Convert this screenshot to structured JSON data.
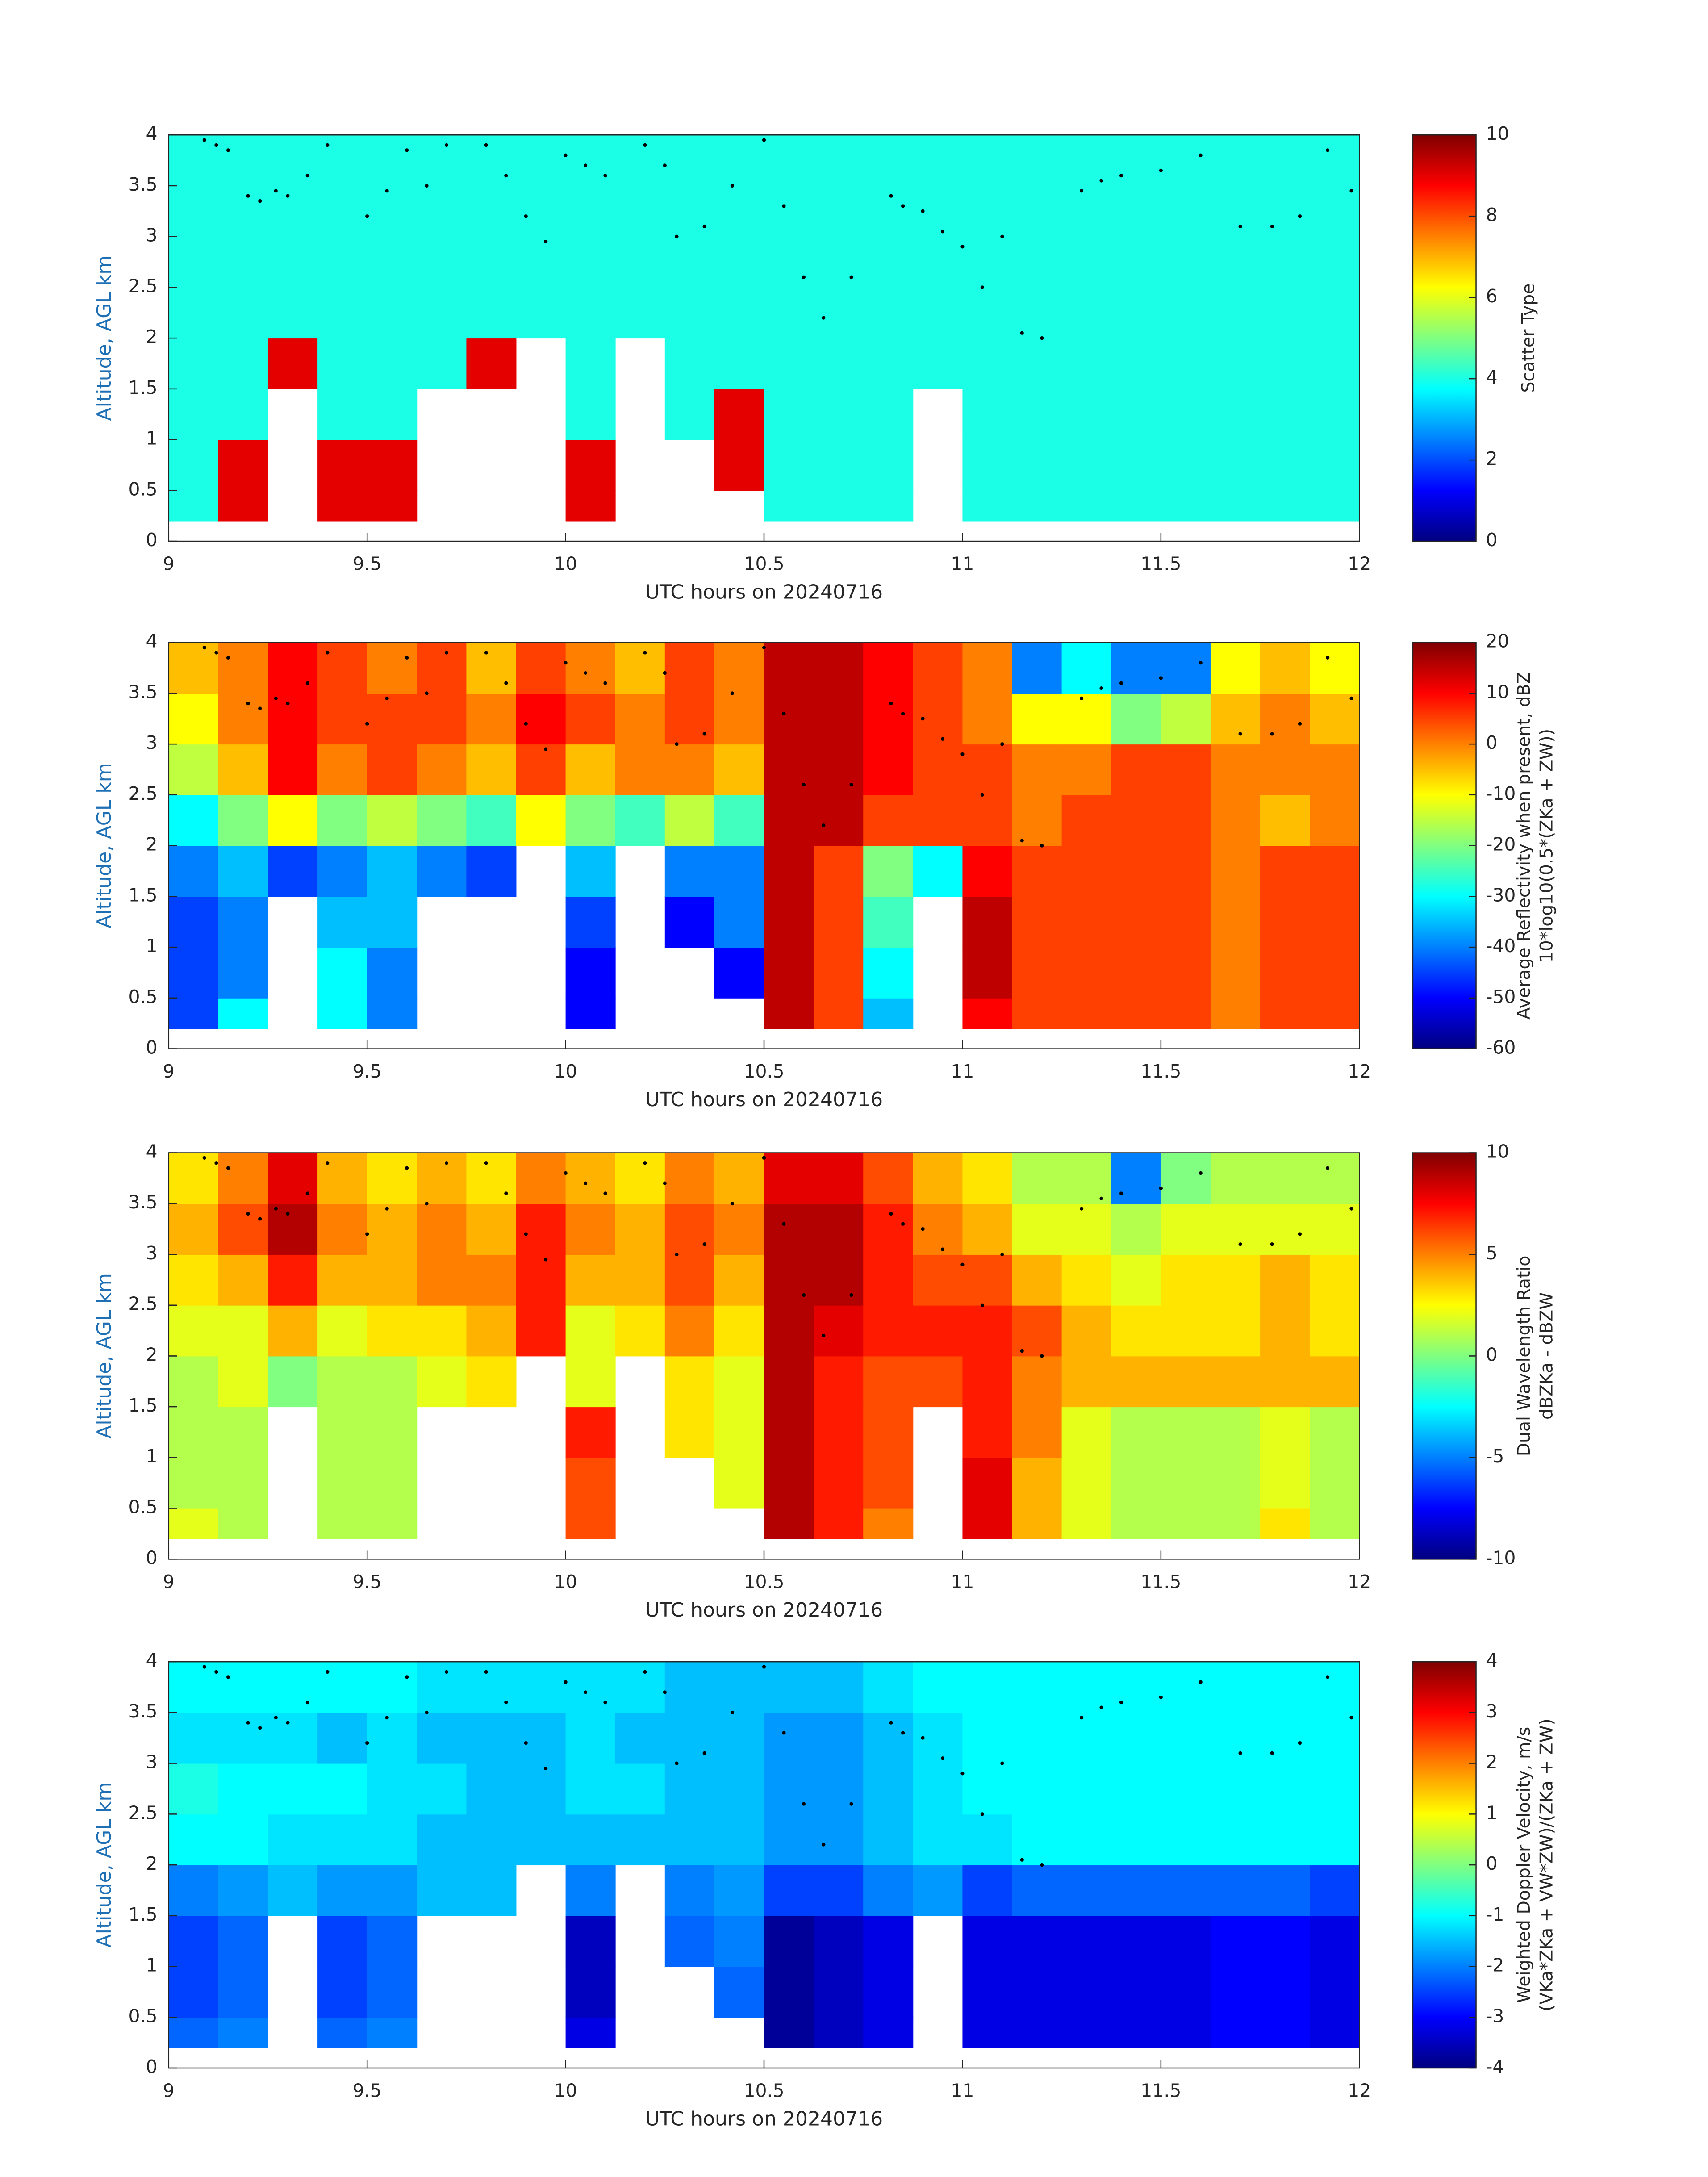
{
  "chart_data": [
    {
      "type": "heatmap",
      "colormap": "jet",
      "xlabel": "UTC hours on 20240716",
      "ylabel": "Altitude, AGL km",
      "xlim": [
        9,
        12
      ],
      "ylim": [
        0,
        4
      ],
      "xticks": [
        9,
        9.5,
        10,
        10.5,
        11,
        11.5,
        12
      ],
      "yticks": [
        0,
        0.5,
        1,
        1.5,
        2,
        2.5,
        3,
        3.5,
        4
      ],
      "clim": [
        0,
        10
      ],
      "cticks": [
        0,
        2,
        4,
        6,
        8,
        10
      ],
      "colorbar_label": [
        "Scatter Type"
      ],
      "x_edges": [
        9,
        9.125,
        9.25,
        9.375,
        9.5,
        9.625,
        9.75,
        9.875,
        10,
        10.125,
        10.25,
        10.375,
        10.5,
        10.625,
        10.75,
        10.875,
        11,
        11.125,
        11.25,
        11.375,
        11.5,
        11.625,
        11.75,
        11.875,
        12
      ],
      "y_edges": [
        0.2,
        0.5,
        1,
        1.5,
        2,
        2.5,
        3,
        3.5,
        4
      ],
      "z": [
        [
          4,
          9,
          null,
          9,
          9,
          null,
          null,
          null,
          9,
          null,
          null,
          null,
          4,
          4,
          4,
          null,
          4,
          4,
          4,
          4,
          4,
          4,
          4,
          4
        ],
        [
          4,
          9,
          null,
          9,
          9,
          null,
          null,
          null,
          9,
          null,
          null,
          9,
          4,
          4,
          4,
          null,
          4,
          4,
          4,
          4,
          4,
          4,
          4,
          4
        ],
        [
          4,
          4,
          null,
          4,
          4,
          null,
          null,
          null,
          4,
          null,
          4,
          9,
          4,
          4,
          4,
          null,
          4,
          4,
          4,
          4,
          4,
          4,
          4,
          4
        ],
        [
          4,
          4,
          9,
          4,
          4,
          4,
          9,
          null,
          4,
          null,
          4,
          4,
          4,
          4,
          4,
          4,
          4,
          4,
          4,
          4,
          4,
          4,
          4,
          4
        ],
        [
          4,
          4,
          4,
          4,
          4,
          4,
          4,
          4,
          4,
          4,
          4,
          4,
          4,
          4,
          4,
          4,
          4,
          4,
          4,
          4,
          4,
          4,
          4,
          4
        ],
        [
          4,
          4,
          4,
          4,
          4,
          4,
          4,
          4,
          4,
          4,
          4,
          4,
          4,
          4,
          4,
          4,
          4,
          4,
          4,
          4,
          4,
          4,
          4,
          4
        ],
        [
          4,
          4,
          4,
          4,
          4,
          4,
          4,
          4,
          4,
          4,
          4,
          4,
          4,
          4,
          4,
          4,
          4,
          4,
          4,
          4,
          4,
          4,
          4,
          4
        ],
        [
          4,
          4,
          4,
          4,
          4,
          4,
          4,
          4,
          4,
          4,
          4,
          4,
          4,
          4,
          4,
          4,
          4,
          4,
          4,
          4,
          4,
          4,
          4,
          4
        ]
      ]
    },
    {
      "type": "heatmap",
      "colormap": "jet",
      "xlabel": "UTC hours on 20240716",
      "ylabel": "Altitude, AGL km",
      "xlim": [
        9,
        12
      ],
      "ylim": [
        0,
        4
      ],
      "xticks": [
        9,
        9.5,
        10,
        10.5,
        11,
        11.5,
        12
      ],
      "yticks": [
        0,
        0.5,
        1,
        1.5,
        2,
        2.5,
        3,
        3.5,
        4
      ],
      "clim": [
        -60,
        20
      ],
      "cticks": [
        -60,
        -50,
        -40,
        -30,
        -20,
        -10,
        0,
        10,
        20
      ],
      "colorbar_label": [
        "Average Reflectivity when present, dBZ",
        "10*log10(0.5*(ZKa + ZW))"
      ],
      "x_edges": [
        9,
        9.125,
        9.25,
        9.375,
        9.5,
        9.625,
        9.75,
        9.875,
        10,
        10.125,
        10.25,
        10.375,
        10.5,
        10.625,
        10.75,
        10.875,
        11,
        11.125,
        11.25,
        11.375,
        11.5,
        11.625,
        11.75,
        11.875,
        12
      ],
      "y_edges": [
        0.2,
        0.5,
        1,
        1.5,
        2,
        2.5,
        3,
        3.5,
        4
      ],
      "z": [
        [
          -45,
          -30,
          null,
          -30,
          -40,
          null,
          null,
          null,
          -50,
          null,
          null,
          null,
          15,
          5,
          -35,
          null,
          10,
          5,
          5,
          5,
          5,
          0,
          5,
          5
        ],
        [
          -45,
          -40,
          null,
          -30,
          -40,
          null,
          null,
          null,
          -50,
          null,
          null,
          -50,
          15,
          5,
          -30,
          null,
          15,
          5,
          5,
          5,
          5,
          0,
          5,
          5
        ],
        [
          -45,
          -40,
          null,
          -35,
          -35,
          null,
          null,
          null,
          -45,
          null,
          -50,
          -40,
          15,
          5,
          -25,
          null,
          15,
          5,
          5,
          5,
          5,
          0,
          5,
          5
        ],
        [
          -40,
          -35,
          -45,
          -40,
          -35,
          -40,
          -45,
          null,
          -35,
          null,
          -40,
          -40,
          15,
          5,
          -20,
          -30,
          10,
          5,
          5,
          5,
          5,
          0,
          5,
          5
        ],
        [
          -30,
          -20,
          -10,
          -20,
          -15,
          -20,
          -25,
          -10,
          -20,
          -25,
          -15,
          -25,
          15,
          15,
          5,
          5,
          5,
          0,
          5,
          5,
          5,
          0,
          -5,
          0
        ],
        [
          -15,
          -5,
          10,
          0,
          5,
          0,
          -5,
          5,
          -5,
          0,
          0,
          -5,
          15,
          15,
          10,
          5,
          5,
          0,
          0,
          5,
          5,
          0,
          0,
          0
        ],
        [
          -10,
          0,
          10,
          5,
          5,
          5,
          0,
          10,
          5,
          0,
          5,
          0,
          15,
          15,
          10,
          5,
          0,
          -10,
          -10,
          -20,
          -15,
          -5,
          0,
          -5
        ],
        [
          -5,
          0,
          10,
          5,
          0,
          5,
          -5,
          5,
          0,
          -5,
          5,
          0,
          15,
          15,
          10,
          5,
          0,
          -40,
          -30,
          -40,
          -40,
          -10,
          -5,
          -10
        ]
      ]
    },
    {
      "type": "heatmap",
      "colormap": "jet",
      "xlabel": "UTC hours on 20240716",
      "ylabel": "Altitude, AGL km",
      "xlim": [
        9,
        12
      ],
      "ylim": [
        0,
        4
      ],
      "xticks": [
        9,
        9.5,
        10,
        10.5,
        11,
        11.5,
        12
      ],
      "yticks": [
        0,
        0.5,
        1,
        1.5,
        2,
        2.5,
        3,
        3.5,
        4
      ],
      "clim": [
        -10,
        10
      ],
      "cticks": [
        -10,
        -5,
        0,
        5,
        10
      ],
      "colorbar_label": [
        "Dual Wavelength Ratio",
        "dBZKa - dBZW"
      ],
      "x_edges": [
        9,
        9.125,
        9.25,
        9.375,
        9.5,
        9.625,
        9.75,
        9.875,
        10,
        10.125,
        10.25,
        10.375,
        10.5,
        10.625,
        10.75,
        10.875,
        11,
        11.125,
        11.25,
        11.375,
        11.5,
        11.625,
        11.75,
        11.875,
        12
      ],
      "y_edges": [
        0.2,
        0.5,
        1,
        1.5,
        2,
        2.5,
        3,
        3.5,
        4
      ],
      "z": [
        [
          2,
          1,
          null,
          1,
          1,
          null,
          null,
          null,
          6,
          null,
          null,
          null,
          9,
          7,
          5,
          null,
          8,
          4,
          2,
          1,
          1,
          1,
          3,
          1
        ],
        [
          1,
          1,
          null,
          1,
          1,
          null,
          null,
          null,
          6,
          null,
          null,
          2,
          9,
          7,
          6,
          null,
          8,
          4,
          2,
          1,
          1,
          1,
          2,
          1
        ],
        [
          1,
          1,
          null,
          1,
          1,
          null,
          null,
          null,
          7,
          null,
          3,
          2,
          9,
          7,
          6,
          null,
          7,
          5,
          2,
          1,
          1,
          1,
          2,
          1
        ],
        [
          1,
          2,
          0,
          1,
          1,
          2,
          3,
          null,
          2,
          null,
          3,
          2,
          9,
          7,
          6,
          6,
          7,
          5,
          4,
          4,
          4,
          4,
          4,
          4
        ],
        [
          2,
          2,
          4,
          2,
          3,
          3,
          4,
          7,
          2,
          3,
          5,
          3,
          9,
          8,
          7,
          7,
          7,
          6,
          4,
          3,
          3,
          3,
          4,
          3
        ],
        [
          3,
          4,
          7,
          4,
          4,
          5,
          5,
          7,
          4,
          4,
          6,
          4,
          9,
          9,
          7,
          6,
          6,
          4,
          3,
          2,
          3,
          3,
          4,
          3
        ],
        [
          4,
          6,
          9,
          5,
          4,
          5,
          4,
          7,
          5,
          4,
          6,
          5,
          9,
          9,
          7,
          5,
          4,
          2,
          2,
          1,
          2,
          2,
          2,
          2
        ],
        [
          3,
          5,
          8,
          4,
          3,
          4,
          3,
          5,
          4,
          3,
          5,
          4,
          8,
          8,
          6,
          4,
          3,
          1,
          1,
          -5,
          0,
          1,
          1,
          1
        ]
      ]
    },
    {
      "type": "heatmap",
      "colormap": "jet",
      "xlabel": "UTC hours on 20240716",
      "ylabel": "Altitude, AGL km",
      "xlim": [
        9,
        12
      ],
      "ylim": [
        0,
        4
      ],
      "xticks": [
        9,
        9.5,
        10,
        10.5,
        11,
        11.5,
        12
      ],
      "yticks": [
        0,
        0.5,
        1,
        1.5,
        2,
        2.5,
        3,
        3.5,
        4
      ],
      "clim": [
        -4,
        4
      ],
      "cticks": [
        -4,
        -3,
        -2,
        -1,
        0,
        1,
        2,
        3,
        4
      ],
      "colorbar_label": [
        "Weighted Doppler Velocity, m/s",
        "(VKa*ZKa + VW*ZW)/(ZKa + ZW)"
      ],
      "x_edges": [
        9,
        9.125,
        9.25,
        9.375,
        9.5,
        9.625,
        9.75,
        9.875,
        10,
        10.125,
        10.25,
        10.375,
        10.5,
        10.625,
        10.75,
        10.875,
        11,
        11.125,
        11.25,
        11.375,
        11.5,
        11.625,
        11.75,
        11.875,
        12
      ],
      "y_edges": [
        0.2,
        0.5,
        1,
        1.5,
        2,
        2.5,
        3,
        3.5,
        4
      ],
      "z": [
        [
          -2.2,
          -2,
          null,
          -2.2,
          -2,
          null,
          null,
          null,
          -3.2,
          null,
          null,
          null,
          -3.8,
          -3.5,
          -3.2,
          null,
          -3.2,
          -3.2,
          -3.2,
          -3.2,
          -3.2,
          -3,
          -3,
          -3.2
        ],
        [
          -2.5,
          -2.2,
          null,
          -2.5,
          -2.2,
          null,
          null,
          null,
          -3.5,
          null,
          null,
          -2.2,
          -3.8,
          -3.5,
          -3.2,
          null,
          -3.2,
          -3.2,
          -3.2,
          -3.2,
          -3.2,
          -3,
          -3,
          -3.2
        ],
        [
          -2.5,
          -2.2,
          null,
          -2.5,
          -2.2,
          null,
          null,
          null,
          -3.5,
          null,
          -2.2,
          -2,
          -3.8,
          -3.5,
          -3.2,
          null,
          -3.2,
          -3.2,
          -3.2,
          -3.2,
          -3.2,
          -3,
          -3,
          -3.2
        ],
        [
          -2,
          -1.8,
          -1.5,
          -1.8,
          -1.8,
          -1.5,
          -1.5,
          null,
          -2,
          null,
          -2,
          -1.8,
          -2.5,
          -2.5,
          -2,
          -1.8,
          -2.5,
          -2.2,
          -2.2,
          -2.2,
          -2.2,
          -2.2,
          -2.2,
          -2.5
        ],
        [
          -1,
          -1,
          -1.2,
          -1.2,
          -1.2,
          -1.5,
          -1.5,
          -1.5,
          -1.5,
          -1.5,
          -1.5,
          -1.5,
          -1.8,
          -1.8,
          -1.5,
          -1.2,
          -1.2,
          -1,
          -1,
          -1,
          -1,
          -1,
          -1,
          -1
        ],
        [
          -0.8,
          -1,
          -1,
          -1,
          -1.2,
          -1.2,
          -1.5,
          -1.5,
          -1.2,
          -1.2,
          -1.5,
          -1.5,
          -1.8,
          -1.8,
          -1.5,
          -1.2,
          -1,
          -1,
          -1,
          -1,
          -1,
          -1,
          -1,
          -1
        ],
        [
          -1.2,
          -1.2,
          -1.2,
          -1.5,
          -1.2,
          -1.5,
          -1.5,
          -1.5,
          -1.2,
          -1.5,
          -1.5,
          -1.5,
          -1.8,
          -1.8,
          -1.5,
          -1.2,
          -1,
          -1,
          -1,
          -1,
          -1,
          -1,
          -1,
          -1
        ],
        [
          -1,
          -1,
          -1,
          -1,
          -1,
          -1.2,
          -1.2,
          -1.2,
          -1.2,
          -1.2,
          -1.5,
          -1.5,
          -1.5,
          -1.5,
          -1.2,
          -1,
          -1,
          -1,
          -1,
          -1,
          -1,
          -1,
          -1,
          -1
        ]
      ]
    }
  ],
  "overlay_points": {
    "x": [
      9.09,
      9.12,
      9.15,
      9.2,
      9.23,
      9.27,
      9.3,
      9.35,
      9.4,
      9.5,
      9.55,
      9.6,
      9.65,
      9.7,
      9.8,
      9.85,
      9.9,
      9.95,
      10.0,
      10.05,
      10.1,
      10.2,
      10.25,
      10.28,
      10.35,
      10.42,
      10.5,
      10.55,
      10.6,
      10.65,
      10.72,
      10.82,
      10.85,
      10.9,
      10.95,
      11.0,
      11.05,
      11.1,
      11.15,
      11.2,
      11.3,
      11.35,
      11.4,
      11.5,
      11.6,
      11.7,
      11.78,
      11.85,
      11.92,
      11.98
    ],
    "y": [
      3.95,
      3.9,
      3.85,
      3.4,
      3.35,
      3.45,
      3.4,
      3.6,
      3.9,
      3.2,
      3.45,
      3.85,
      3.5,
      3.9,
      3.9,
      3.6,
      3.2,
      2.95,
      3.8,
      3.7,
      3.6,
      3.9,
      3.7,
      3.0,
      3.1,
      3.5,
      3.95,
      3.3,
      2.6,
      2.2,
      2.6,
      3.4,
      3.3,
      3.25,
      3.05,
      2.9,
      2.5,
      3.0,
      2.05,
      2.0,
      3.45,
      3.55,
      3.6,
      3.65,
      3.8,
      3.1,
      3.1,
      3.2,
      3.85,
      3.45
    ]
  }
}
